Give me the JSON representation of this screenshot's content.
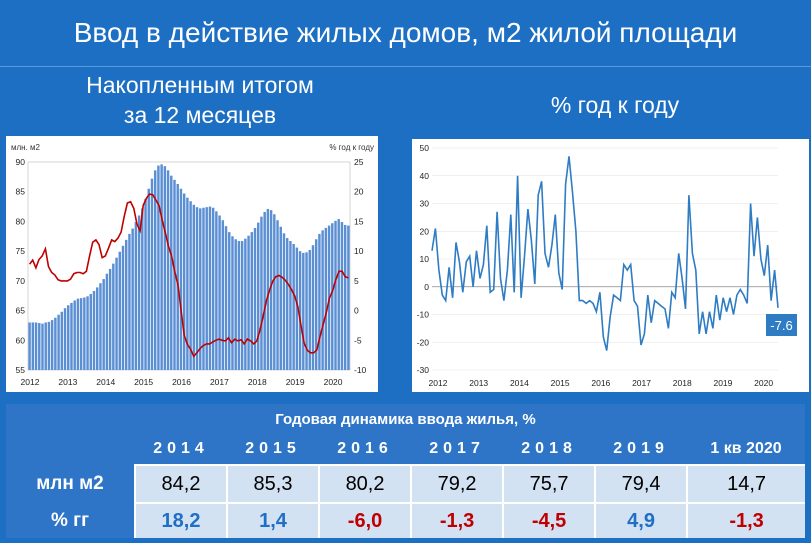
{
  "title": "Ввод в действие жилых домов, м2 жилой площади",
  "left_subtitle_line1": "Накопленным итогом",
  "left_subtitle_line2": "за 12 месяцев",
  "right_subtitle": "% год к году",
  "colors": {
    "background": "#1d6fc4",
    "bar": "#5b8fd4",
    "line_red": "#c00000",
    "line_blue": "#2e7cc4",
    "positive": "#1f6fc4",
    "negative": "#c00000"
  },
  "chart_data": [
    {
      "type": "bar",
      "left_axis_unit": "млн. м2",
      "right_axis_unit": "% год к году",
      "ylim_left": [
        55,
        90
      ],
      "yticks_left": [
        55,
        60,
        65,
        70,
        75,
        80,
        85,
        90
      ],
      "ylim_right": [
        -10,
        25
      ],
      "yticks_right": [
        -10,
        -5,
        0,
        5,
        10,
        15,
        20,
        25
      ],
      "x_labels": [
        "2012",
        "2013",
        "2014",
        "2015",
        "2016",
        "2017",
        "2018",
        "2019",
        "2020"
      ],
      "bar_values": [
        63,
        63,
        63,
        62.9,
        62.8,
        63,
        63.1,
        63.4,
        63.8,
        64.3,
        64.8,
        65.4,
        65.9,
        66.3,
        66.7,
        67,
        67.1,
        67.2,
        67.4,
        67.8,
        68.3,
        68.9,
        69.6,
        70.3,
        71.2,
        72,
        72.9,
        73.9,
        74.9,
        75.9,
        76.9,
        77.9,
        78.8,
        79.9,
        81,
        82.2,
        83.8,
        85.5,
        87.2,
        88.6,
        89.4,
        89.6,
        89.3,
        88.6,
        87.7,
        87,
        86.3,
        85.5,
        84.7,
        84,
        83.4,
        82.8,
        82.4,
        82.2,
        82.3,
        82.4,
        82.5,
        82.3,
        81.7,
        81,
        80.2,
        79.2,
        78.2,
        77.5,
        77,
        76.7,
        76.7,
        77.1,
        77.6,
        78.2,
        78.9,
        79.8,
        80.8,
        81.6,
        82.1,
        81.9,
        81.2,
        80.2,
        79.1,
        78,
        77.2,
        76.7,
        76.2,
        75.6,
        75,
        74.7,
        74.8,
        75.2,
        76,
        77,
        77.9,
        78.5,
        78.9,
        79.3,
        79.7,
        80.1,
        80.4,
        79.9,
        79.4,
        79.3
      ],
      "line_values": [
        7.8,
        8.5,
        7.2,
        8.6,
        9.2,
        10.4,
        7.4,
        6.4,
        6,
        5.2,
        5,
        5,
        5,
        5.3,
        6.2,
        6.4,
        6.4,
        6.2,
        6.6,
        9.2,
        11.5,
        11.9,
        11.1,
        8.9,
        9.2,
        10.5,
        11.9,
        11.6,
        12.2,
        13.2,
        15.9,
        18.1,
        18.3,
        17.2,
        14.6,
        13.4,
        17.7,
        18.9,
        19.6,
        19.5,
        18.6,
        17.7,
        15.2,
        13.1,
        10.8,
        9.2,
        6.5,
        4.3,
        0,
        -4.2,
        -5.7,
        -6.5,
        -7.7,
        -7.1,
        -6.4,
        -5.9,
        -5.6,
        -5.6,
        -5.3,
        -5,
        -4.8,
        -5,
        -5.1,
        -4.6,
        -5.4,
        -4.8,
        -5.1,
        -4.9,
        -5.6,
        -4.8,
        -5.1,
        -5.6,
        -5.1,
        -3.3,
        -0.9,
        1.6,
        3.4,
        4.9,
        5.7,
        5.9,
        5.6,
        5.1,
        4.4,
        3.5,
        2.4,
        0.6,
        -2.6,
        -5.5,
        -6.7,
        -7.1,
        -7.1,
        -6.6,
        -4.4,
        -2.3,
        -0.3,
        2.1,
        3.3,
        5.2,
        6.6,
        6.6,
        5.7,
        5.5
      ]
    },
    {
      "type": "line",
      "ylim": [
        -30,
        50
      ],
      "yticks": [
        -30,
        -20,
        -10,
        0,
        10,
        20,
        30,
        40,
        50
      ],
      "x_labels": [
        "2012",
        "2013",
        "2014",
        "2015",
        "2016",
        "2017",
        "2018",
        "2019",
        "2020"
      ],
      "values": [
        13,
        21,
        6,
        -3,
        -5,
        7,
        -4,
        16,
        9,
        -2,
        9,
        11,
        0,
        13,
        3,
        8,
        22,
        -2,
        -1,
        27,
        3,
        -5,
        6,
        26,
        -2,
        40,
        -4,
        11,
        28,
        17,
        1,
        33,
        38,
        12,
        7,
        15,
        26,
        5,
        -1,
        37,
        47,
        34,
        20,
        -5,
        -5,
        -6,
        -5,
        -6,
        -9,
        -2,
        -18,
        -23,
        -11,
        -3,
        -4,
        -5,
        8,
        6,
        8,
        -5,
        -7,
        -21,
        -17,
        -3,
        -13,
        -5,
        -6,
        -7,
        -8,
        -15,
        -2,
        -4,
        12,
        3,
        -8,
        33,
        12,
        6,
        -17,
        -9,
        -17,
        -9,
        -15,
        -3,
        -12,
        -4,
        -9,
        -4,
        -10,
        -3,
        -1,
        -3,
        -6,
        30,
        11,
        25,
        10,
        4,
        15,
        -5,
        6,
        -7.6
      ],
      "last_value_label": "-7.6"
    }
  ],
  "table": {
    "caption": "Годовая динамика ввода жилья, %",
    "columns": [
      "2014",
      "2015",
      "2016",
      "2017",
      "2018",
      "2019",
      "1 кв 2020"
    ],
    "rows": [
      {
        "label": "млн м2",
        "values": [
          "84,2",
          "85,3",
          "80,2",
          "79,2",
          "75,7",
          "79,4",
          "14,7"
        ]
      },
      {
        "label": "% гг",
        "values": [
          "18,2",
          "1,4",
          "-6,0",
          "-1,3",
          "-4,5",
          "4,9",
          "-1,3"
        ]
      }
    ]
  }
}
